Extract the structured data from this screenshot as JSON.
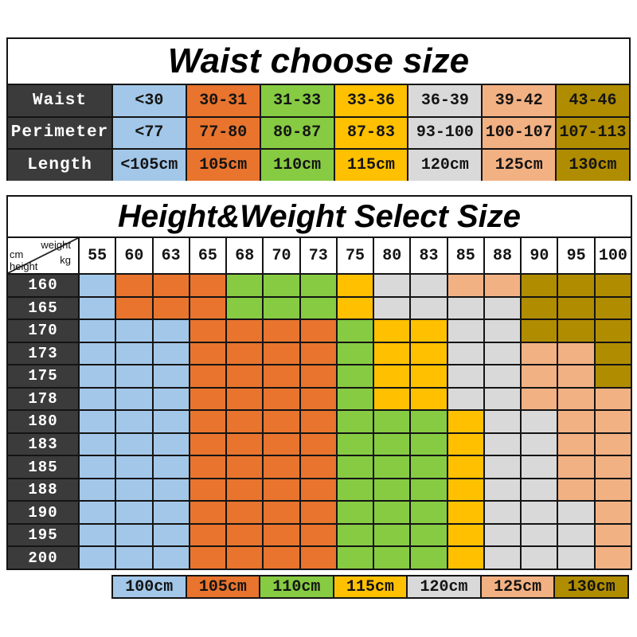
{
  "palette": {
    "blue": "#A3C7E8",
    "orange": "#E8742E",
    "green": "#86CB42",
    "yellow": "#FFC000",
    "gray": "#D9D9D9",
    "peach": "#F2B183",
    "olive": "#B08C00",
    "header_dark": "#3B3B3B",
    "border": "#141414"
  },
  "corner": {
    "cm": "cm",
    "weight": "weight",
    "height": "height",
    "kg": "kg"
  },
  "chart_data": [
    {
      "type": "table",
      "title": "Waist choose size",
      "row_labels": [
        "Waist",
        "Perimeter",
        "Length"
      ],
      "rows": [
        [
          "<30",
          "30-31",
          "31-33",
          "33-36",
          "36-39",
          "39-42",
          "43-46"
        ],
        [
          "<77",
          "77-80",
          "80-87",
          "87-83",
          "93-100",
          "100-107",
          "107-113"
        ],
        [
          "<105cm",
          "105cm",
          "110cm",
          "115cm",
          "120cm",
          "125cm",
          "130cm"
        ]
      ],
      "column_colors": [
        "blue",
        "orange",
        "green",
        "yellow",
        "gray",
        "peach",
        "olive"
      ]
    },
    {
      "type": "heatmap",
      "title": "Height&Weight Select Size",
      "x_label": "weight kg",
      "y_label": "cm height",
      "columns": [
        "55",
        "60",
        "63",
        "65",
        "68",
        "70",
        "73",
        "75",
        "80",
        "83",
        "85",
        "88",
        "90",
        "95",
        "100"
      ],
      "rows": [
        "160",
        "165",
        "170",
        "173",
        "175",
        "178",
        "180",
        "183",
        "185",
        "188",
        "190",
        "195",
        "200"
      ],
      "grid": [
        [
          "blue",
          "orange",
          "orange",
          "orange",
          "green",
          "green",
          "green",
          "yellow",
          "gray",
          "gray",
          "peach",
          "peach",
          "olive",
          "olive",
          "olive"
        ],
        [
          "blue",
          "orange",
          "orange",
          "orange",
          "green",
          "green",
          "green",
          "yellow",
          "gray",
          "gray",
          "gray",
          "gray",
          "olive",
          "olive",
          "olive"
        ],
        [
          "blue",
          "blue",
          "blue",
          "orange",
          "orange",
          "orange",
          "orange",
          "green",
          "yellow",
          "yellow",
          "gray",
          "gray",
          "olive",
          "olive",
          "olive"
        ],
        [
          "blue",
          "blue",
          "blue",
          "orange",
          "orange",
          "orange",
          "orange",
          "green",
          "yellow",
          "yellow",
          "gray",
          "gray",
          "peach",
          "peach",
          "olive"
        ],
        [
          "blue",
          "blue",
          "blue",
          "orange",
          "orange",
          "orange",
          "orange",
          "green",
          "yellow",
          "yellow",
          "gray",
          "gray",
          "peach",
          "peach",
          "olive"
        ],
        [
          "blue",
          "blue",
          "blue",
          "orange",
          "orange",
          "orange",
          "orange",
          "green",
          "yellow",
          "yellow",
          "gray",
          "gray",
          "peach",
          "peach",
          "peach"
        ],
        [
          "blue",
          "blue",
          "blue",
          "orange",
          "orange",
          "orange",
          "orange",
          "green",
          "green",
          "green",
          "yellow",
          "gray",
          "gray",
          "peach",
          "peach"
        ],
        [
          "blue",
          "blue",
          "blue",
          "orange",
          "orange",
          "orange",
          "orange",
          "green",
          "green",
          "green",
          "yellow",
          "gray",
          "gray",
          "peach",
          "peach"
        ],
        [
          "blue",
          "blue",
          "blue",
          "orange",
          "orange",
          "orange",
          "orange",
          "green",
          "green",
          "green",
          "yellow",
          "gray",
          "gray",
          "peach",
          "peach"
        ],
        [
          "blue",
          "blue",
          "blue",
          "orange",
          "orange",
          "orange",
          "orange",
          "green",
          "green",
          "green",
          "yellow",
          "gray",
          "gray",
          "peach",
          "peach"
        ],
        [
          "blue",
          "blue",
          "blue",
          "orange",
          "orange",
          "orange",
          "orange",
          "green",
          "green",
          "green",
          "yellow",
          "gray",
          "gray",
          "gray",
          "peach"
        ],
        [
          "blue",
          "blue",
          "blue",
          "orange",
          "orange",
          "orange",
          "orange",
          "green",
          "green",
          "green",
          "yellow",
          "gray",
          "gray",
          "gray",
          "peach"
        ],
        [
          "blue",
          "blue",
          "blue",
          "orange",
          "orange",
          "orange",
          "orange",
          "green",
          "green",
          "green",
          "yellow",
          "gray",
          "gray",
          "gray",
          "peach"
        ]
      ],
      "legend": [
        {
          "label": "100cm",
          "color": "blue"
        },
        {
          "label": "105cm",
          "color": "orange"
        },
        {
          "label": "110cm",
          "color": "green"
        },
        {
          "label": "115cm",
          "color": "yellow"
        },
        {
          "label": "120cm",
          "color": "gray"
        },
        {
          "label": "125cm",
          "color": "peach"
        },
        {
          "label": "130cm",
          "color": "olive"
        }
      ]
    }
  ]
}
